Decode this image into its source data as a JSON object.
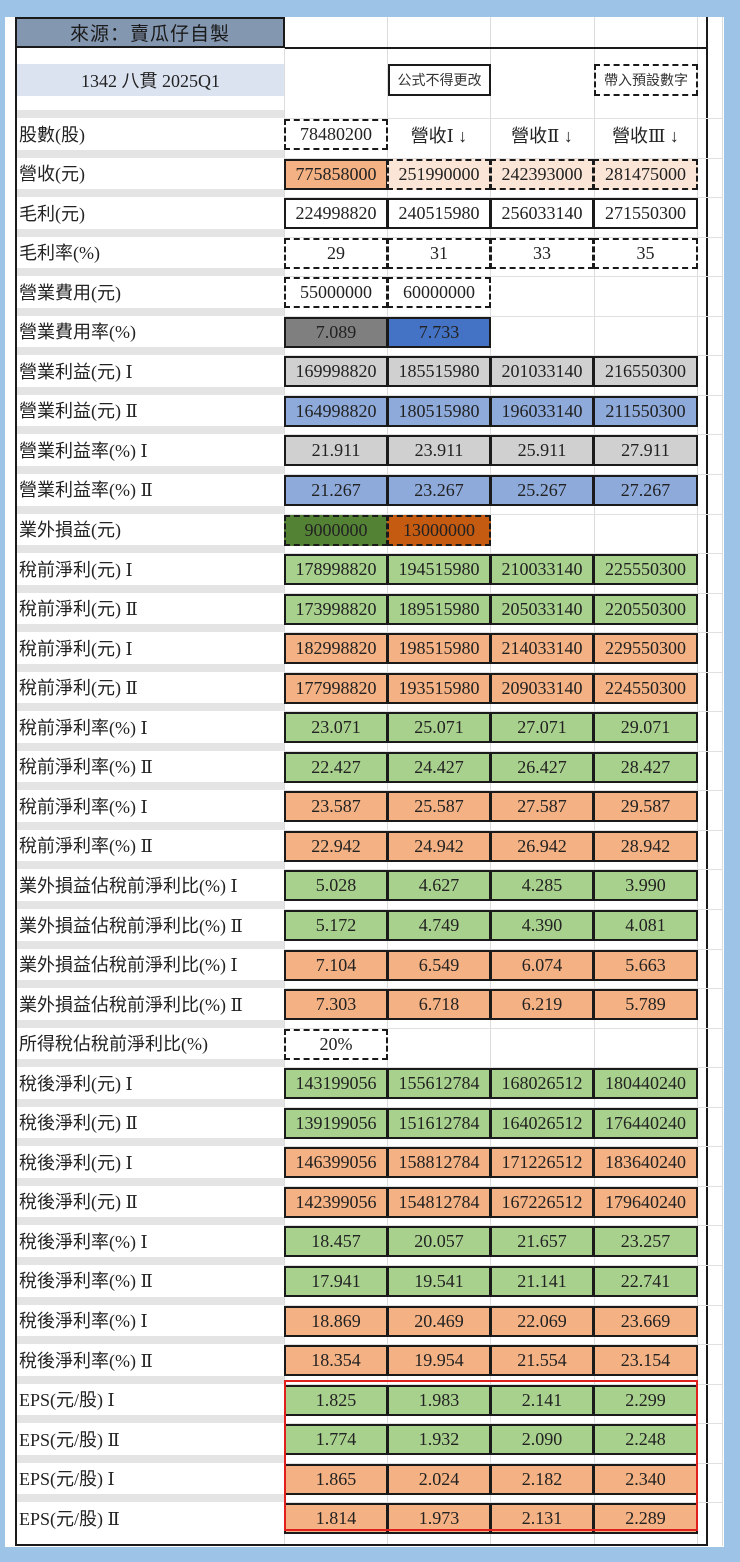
{
  "header": {
    "title": "來源：賣瓜仔自製",
    "subtitle": "1342 八貫 2025Q1",
    "legend_formula": "公式不得更改",
    "legend_input": "帶入預設數字"
  },
  "colors": {
    "background": "#9dc3e6",
    "title_fill": "#8497b0",
    "subtitle_fill": "#dbe3f1",
    "orange_strong": "#f4b183",
    "orange_light": "#fbe5d6",
    "dark_grey": "#7f7f7f",
    "blue": "#4472c4",
    "light_grey": "#d0d0d0",
    "light_blue": "#8eaadb",
    "dark_green": "#548235",
    "dark_orange": "#c55a11",
    "green": "#a9d18e",
    "salmon": "#f4b183",
    "eps_highlight": "#e0201c"
  },
  "rows": [
    {
      "label": "股數(股)",
      "values": [
        "78480200",
        "營收Ⅰ ↓",
        "營收Ⅱ ↓",
        "營收Ⅲ ↓"
      ]
    },
    {
      "label": "營收(元)",
      "values": [
        "775858000",
        "251990000",
        "242393000",
        "281475000"
      ]
    },
    {
      "label": "毛利(元)",
      "values": [
        "224998820",
        "240515980",
        "256033140",
        "271550300"
      ]
    },
    {
      "label": "毛利率(%)",
      "values": [
        "29",
        "31",
        "33",
        "35"
      ]
    },
    {
      "label": "營業費用(元)",
      "values": [
        "55000000",
        "60000000"
      ]
    },
    {
      "label": "營業費用率(%)",
      "values": [
        "7.089",
        "7.733"
      ]
    },
    {
      "label": "營業利益(元) Ⅰ",
      "values": [
        "169998820",
        "185515980",
        "201033140",
        "216550300"
      ]
    },
    {
      "label": "營業利益(元) Ⅱ",
      "values": [
        "164998820",
        "180515980",
        "196033140",
        "211550300"
      ]
    },
    {
      "label": "營業利益率(%) Ⅰ",
      "values": [
        "21.911",
        "23.911",
        "25.911",
        "27.911"
      ]
    },
    {
      "label": "營業利益率(%) Ⅱ",
      "values": [
        "21.267",
        "23.267",
        "25.267",
        "27.267"
      ]
    },
    {
      "label": "業外損益(元)",
      "values": [
        "9000000",
        "13000000"
      ]
    },
    {
      "label": "稅前淨利(元) Ⅰ",
      "values": [
        "178998820",
        "194515980",
        "210033140",
        "225550300"
      ]
    },
    {
      "label": "稅前淨利(元) Ⅱ",
      "values": [
        "173998820",
        "189515980",
        "205033140",
        "220550300"
      ]
    },
    {
      "label": "稅前淨利(元) Ⅰ",
      "values": [
        "182998820",
        "198515980",
        "214033140",
        "229550300"
      ]
    },
    {
      "label": "稅前淨利(元) Ⅱ",
      "values": [
        "177998820",
        "193515980",
        "209033140",
        "224550300"
      ]
    },
    {
      "label": "稅前淨利率(%) Ⅰ",
      "values": [
        "23.071",
        "25.071",
        "27.071",
        "29.071"
      ]
    },
    {
      "label": "稅前淨利率(%) Ⅱ",
      "values": [
        "22.427",
        "24.427",
        "26.427",
        "28.427"
      ]
    },
    {
      "label": "稅前淨利率(%) Ⅰ",
      "values": [
        "23.587",
        "25.587",
        "27.587",
        "29.587"
      ]
    },
    {
      "label": "稅前淨利率(%) Ⅱ",
      "values": [
        "22.942",
        "24.942",
        "26.942",
        "28.942"
      ]
    },
    {
      "label": "業外損益佔稅前淨利比(%) Ⅰ",
      "values": [
        "5.028",
        "4.627",
        "4.285",
        "3.990"
      ]
    },
    {
      "label": "業外損益佔稅前淨利比(%) Ⅱ",
      "values": [
        "5.172",
        "4.749",
        "4.390",
        "4.081"
      ]
    },
    {
      "label": "業外損益佔稅前淨利比(%) Ⅰ",
      "values": [
        "7.104",
        "6.549",
        "6.074",
        "5.663"
      ]
    },
    {
      "label": "業外損益佔稅前淨利比(%) Ⅱ",
      "values": [
        "7.303",
        "6.718",
        "6.219",
        "5.789"
      ]
    },
    {
      "label": "所得稅佔稅前淨利比(%)",
      "values": [
        "20%"
      ]
    },
    {
      "label": "稅後淨利(元) Ⅰ",
      "values": [
        "143199056",
        "155612784",
        "168026512",
        "180440240"
      ]
    },
    {
      "label": "稅後淨利(元) Ⅱ",
      "values": [
        "139199056",
        "151612784",
        "164026512",
        "176440240"
      ]
    },
    {
      "label": "稅後淨利(元) Ⅰ",
      "values": [
        "146399056",
        "158812784",
        "171226512",
        "183640240"
      ]
    },
    {
      "label": "稅後淨利(元) Ⅱ",
      "values": [
        "142399056",
        "154812784",
        "167226512",
        "179640240"
      ]
    },
    {
      "label": "稅後淨利率(%) Ⅰ",
      "values": [
        "18.457",
        "20.057",
        "21.657",
        "23.257"
      ]
    },
    {
      "label": "稅後淨利率(%) Ⅱ",
      "values": [
        "17.941",
        "19.541",
        "21.141",
        "22.741"
      ]
    },
    {
      "label": "稅後淨利率(%) Ⅰ",
      "values": [
        "18.869",
        "20.469",
        "22.069",
        "23.669"
      ]
    },
    {
      "label": "稅後淨利率(%) Ⅱ",
      "values": [
        "18.354",
        "19.954",
        "21.554",
        "23.154"
      ]
    },
    {
      "label": "EPS(元/股) Ⅰ",
      "values": [
        "1.825",
        "1.983",
        "2.141",
        "2.299"
      ]
    },
    {
      "label": "EPS(元/股) Ⅱ",
      "values": [
        "1.774",
        "1.932",
        "2.090",
        "2.248"
      ]
    },
    {
      "label": "EPS(元/股) Ⅰ",
      "values": [
        "1.865",
        "2.024",
        "2.182",
        "2.340"
      ]
    },
    {
      "label": "EPS(元/股) Ⅱ",
      "values": [
        "1.814",
        "1.973",
        "2.131",
        "2.289"
      ]
    }
  ]
}
